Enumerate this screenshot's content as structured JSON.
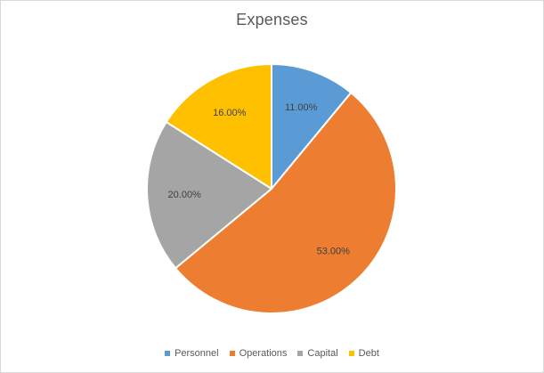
{
  "chart_data": {
    "type": "pie",
    "title": "Expenses",
    "categories": [
      "Personnel",
      "Operations",
      "Capital",
      "Debt"
    ],
    "values": [
      11,
      53,
      20,
      16
    ],
    "data_labels": [
      "11.00%",
      "53.00%",
      "20.00%",
      "16.00%"
    ],
    "colors": [
      "#5b9bd5",
      "#ed7d31",
      "#a5a5a5",
      "#ffc000"
    ],
    "legend_position": "bottom"
  }
}
